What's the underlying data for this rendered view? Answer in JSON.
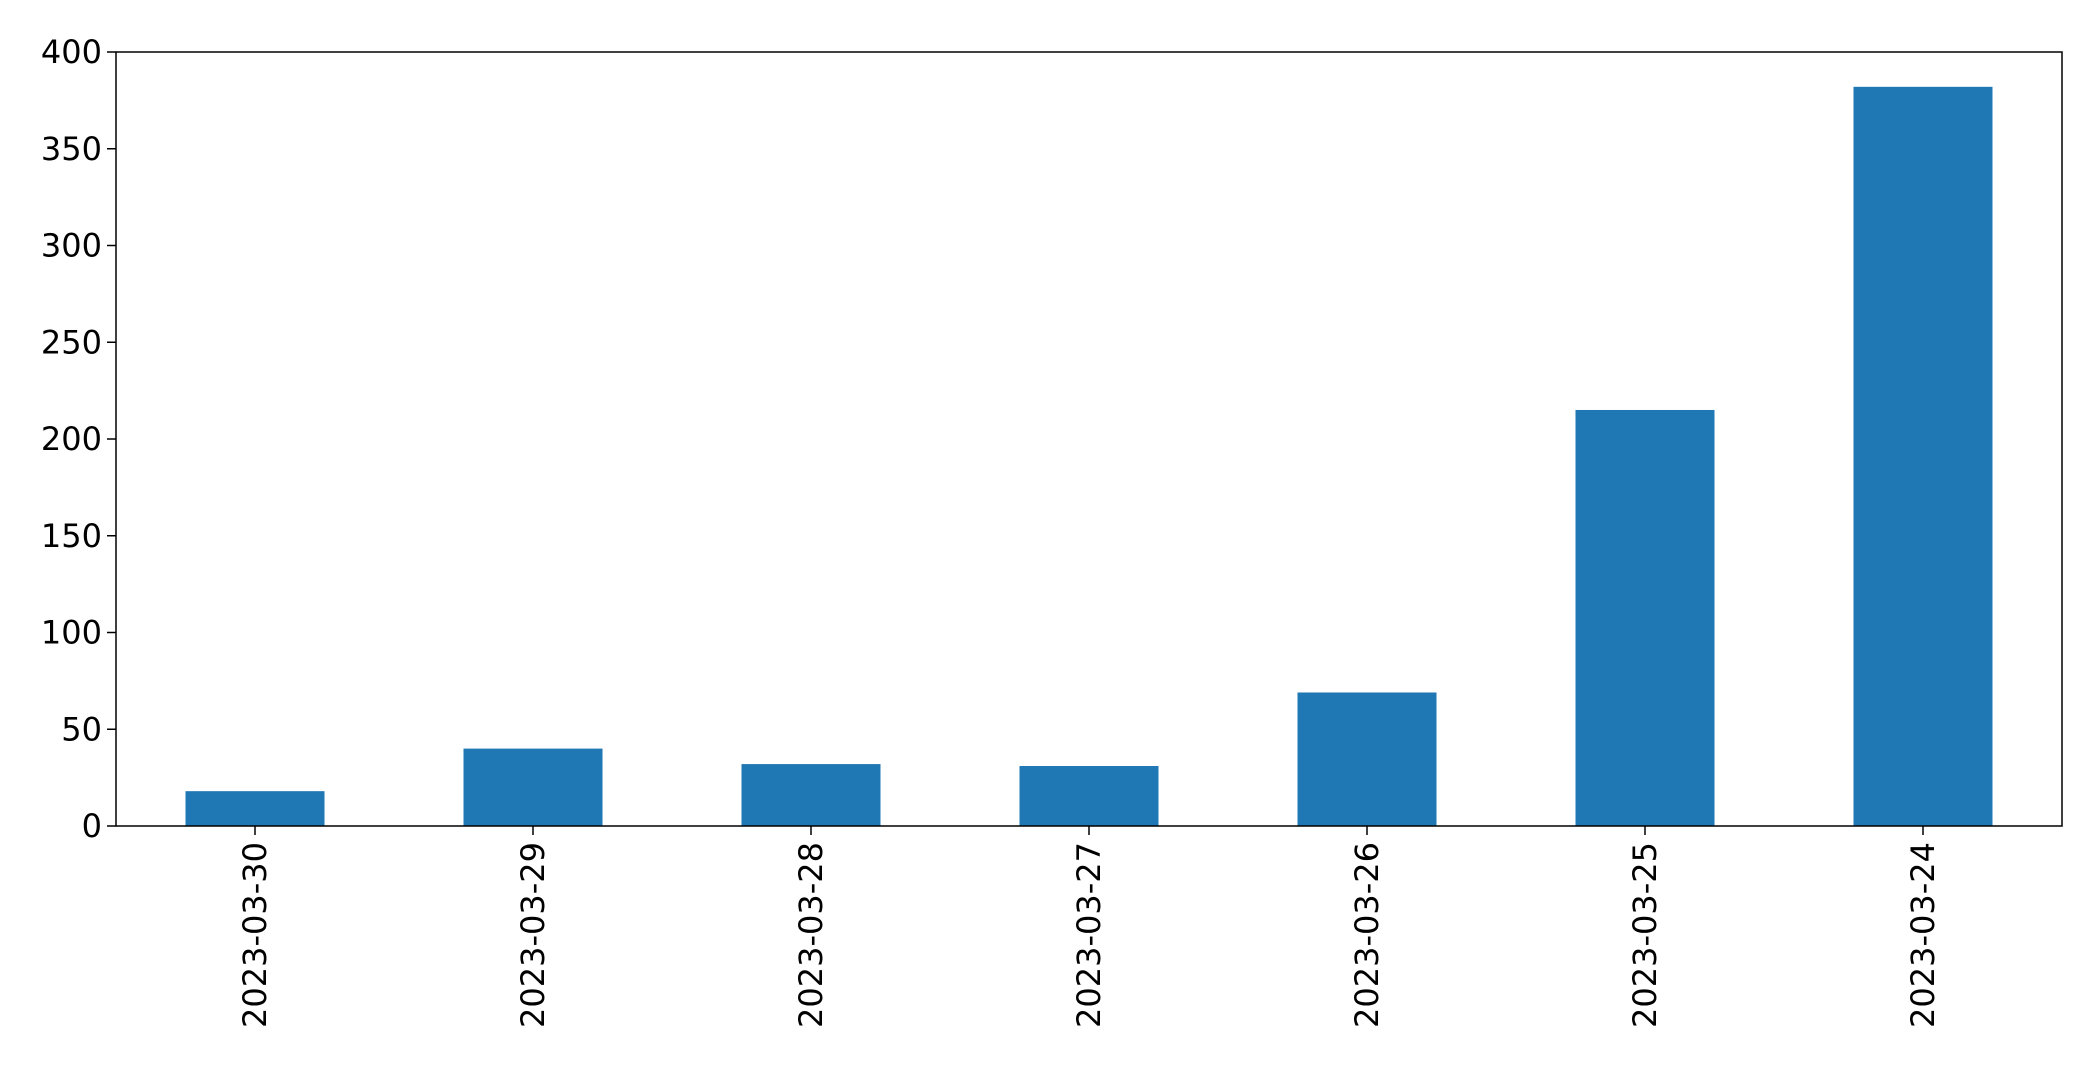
{
  "chart_data": {
    "type": "bar",
    "categories": [
      "2023-03-30",
      "2023-03-29",
      "2023-03-28",
      "2023-03-27",
      "2023-03-26",
      "2023-03-25",
      "2023-03-24"
    ],
    "values": [
      18,
      40,
      32,
      31,
      69,
      215,
      382
    ],
    "title": "",
    "xlabel": "",
    "ylabel": "",
    "ylim": [
      0,
      400
    ],
    "yticks": [
      0,
      50,
      100,
      150,
      200,
      250,
      300,
      350,
      400
    ],
    "grid": false,
    "bar_color": "#1f77b4"
  }
}
